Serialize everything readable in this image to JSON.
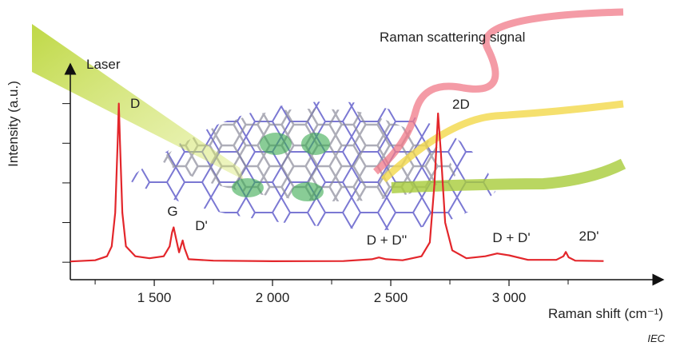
{
  "chart_data": {
    "type": "line",
    "annotations": [
      "Laser",
      "Raman scattering signal",
      "D",
      "G",
      "D'",
      "D + D''",
      "2D",
      "D + D'",
      "2D'"
    ],
    "credit": "IEC",
    "x_label": "Raman shift  (cm⁻¹)",
    "y_label": "Intensity  (a.u.)",
    "color": "#e3262b",
    "x": [
      1145,
      1250,
      1300,
      1320,
      1335,
      1345,
      1350,
      1355,
      1365,
      1380,
      1420,
      1480,
      1540,
      1565,
      1575,
      1582,
      1592,
      1605,
      1615,
      1620,
      1628,
      1645,
      1750,
      2000,
      2300,
      2420,
      2450,
      2480,
      2550,
      2630,
      2665,
      2685,
      2700,
      2712,
      2730,
      2760,
      2820,
      2900,
      2950,
      3000,
      3080,
      3200,
      3230,
      3240,
      3252,
      3280,
      3400
    ],
    "values": [
      0.4,
      1.0,
      3,
      8,
      25,
      60,
      80,
      60,
      25,
      8,
      3,
      2,
      3,
      8,
      15,
      17.6,
      12,
      5,
      9,
      11,
      7,
      1.5,
      0.8,
      0.5,
      0.6,
      1.5,
      2.4,
      1.5,
      1.0,
      3,
      10,
      40,
      75,
      55,
      20,
      6,
      2,
      3,
      4.4,
      3.5,
      1.2,
      1.2,
      3,
      5.2,
      2.5,
      0.8,
      0.6
    ],
    "xlim": [
      1145,
      3625
    ],
    "ylim": [
      -8.8,
      100
    ],
    "xticks": [
      {
        "value": 1500,
        "label": "1 500"
      },
      {
        "value": 2000,
        "label": "2 000"
      },
      {
        "value": 2500,
        "label": "2 500"
      },
      {
        "value": 3000,
        "label": "3 000"
      }
    ],
    "xminorticks": [
      1250,
      1750,
      2250,
      2750,
      3250
    ],
    "yticks": [
      0,
      20,
      40,
      60,
      80
    ]
  }
}
